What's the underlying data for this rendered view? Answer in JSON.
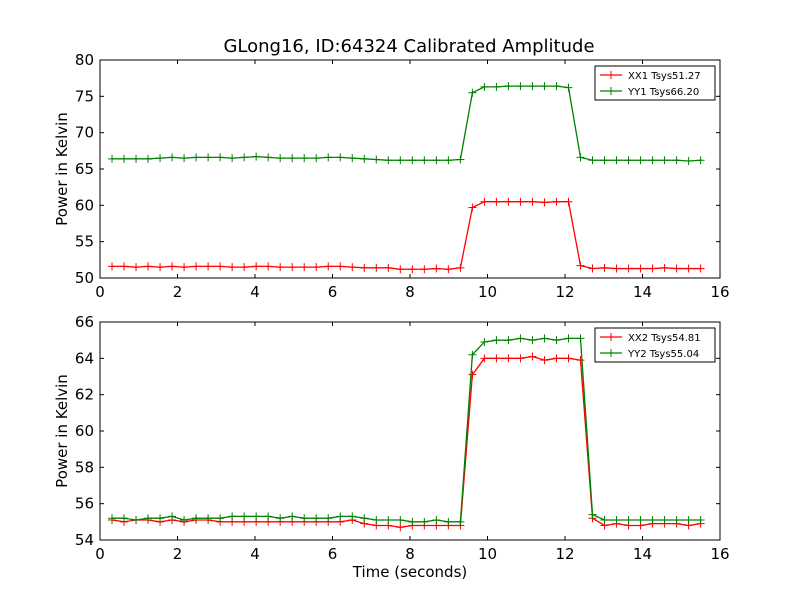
{
  "figure": {
    "title": "GLong16, ID:64324 Calibrated Amplitude",
    "xlabel": "Time (seconds)"
  },
  "chart_data": [
    {
      "type": "line",
      "title": "GLong16, ID:64324 Calibrated Amplitude",
      "xlabel": "",
      "ylabel": "Power in Kelvin",
      "xlim": [
        0,
        16
      ],
      "ylim": [
        50,
        80
      ],
      "xticks": [
        0,
        2,
        4,
        6,
        8,
        10,
        12,
        14,
        16
      ],
      "yticks": [
        50,
        55,
        60,
        65,
        70,
        75,
        80
      ],
      "grid": false,
      "legend": "top-right",
      "x": [
        0.31,
        0.62,
        0.93,
        1.24,
        1.55,
        1.86,
        2.17,
        2.48,
        2.79,
        3.1,
        3.41,
        3.72,
        4.03,
        4.34,
        4.65,
        4.96,
        5.27,
        5.58,
        5.89,
        6.2,
        6.51,
        6.82,
        7.13,
        7.44,
        7.75,
        8.06,
        8.37,
        8.68,
        8.99,
        9.3,
        9.61,
        9.92,
        10.23,
        10.54,
        10.85,
        11.16,
        11.47,
        11.78,
        12.09,
        12.4,
        12.71,
        13.02,
        13.33,
        13.64,
        13.95,
        14.26,
        14.57,
        14.88,
        15.19,
        15.5
      ],
      "series": [
        {
          "name": "XX1 Tsys51.27",
          "color": "#ff0000",
          "values": [
            51.6,
            51.6,
            51.5,
            51.6,
            51.5,
            51.6,
            51.5,
            51.6,
            51.6,
            51.6,
            51.5,
            51.5,
            51.6,
            51.6,
            51.5,
            51.5,
            51.5,
            51.5,
            51.6,
            51.6,
            51.5,
            51.4,
            51.4,
            51.4,
            51.2,
            51.2,
            51.2,
            51.3,
            51.2,
            51.4,
            59.7,
            60.5,
            60.5,
            60.5,
            60.5,
            60.5,
            60.4,
            60.5,
            60.5,
            51.7,
            51.3,
            51.4,
            51.3,
            51.3,
            51.3,
            51.3,
            51.4,
            51.3,
            51.3,
            51.3
          ]
        },
        {
          "name": "YY1 Tsys66.20",
          "color": "#008000",
          "values": [
            66.4,
            66.4,
            66.4,
            66.4,
            66.5,
            66.6,
            66.5,
            66.6,
            66.6,
            66.6,
            66.5,
            66.6,
            66.7,
            66.6,
            66.5,
            66.5,
            66.5,
            66.5,
            66.6,
            66.6,
            66.5,
            66.4,
            66.3,
            66.2,
            66.2,
            66.2,
            66.2,
            66.2,
            66.2,
            66.3,
            75.5,
            76.3,
            76.3,
            76.4,
            76.4,
            76.4,
            76.4,
            76.4,
            76.2,
            66.6,
            66.2,
            66.2,
            66.2,
            66.2,
            66.2,
            66.2,
            66.2,
            66.2,
            66.1,
            66.2
          ]
        }
      ]
    },
    {
      "type": "line",
      "title": "",
      "xlabel": "Time (seconds)",
      "ylabel": "Power in Kelvin",
      "xlim": [
        0,
        16
      ],
      "ylim": [
        54,
        66
      ],
      "xticks": [
        0,
        2,
        4,
        6,
        8,
        10,
        12,
        14,
        16
      ],
      "yticks": [
        54,
        56,
        58,
        60,
        62,
        64,
        66
      ],
      "grid": false,
      "legend": "top-right",
      "x": [
        0.31,
        0.62,
        0.93,
        1.24,
        1.55,
        1.86,
        2.17,
        2.48,
        2.79,
        3.1,
        3.41,
        3.72,
        4.03,
        4.34,
        4.65,
        4.96,
        5.27,
        5.58,
        5.89,
        6.2,
        6.51,
        6.82,
        7.13,
        7.44,
        7.75,
        8.06,
        8.37,
        8.68,
        8.99,
        9.3,
        9.61,
        9.92,
        10.23,
        10.54,
        10.85,
        11.16,
        11.47,
        11.78,
        12.09,
        12.4,
        12.71,
        13.02,
        13.33,
        13.64,
        13.95,
        14.26,
        14.57,
        14.88,
        15.19,
        15.5
      ],
      "series": [
        {
          "name": "XX2 Tsys54.81",
          "color": "#ff0000",
          "values": [
            55.1,
            55.0,
            55.1,
            55.1,
            55.0,
            55.1,
            55.0,
            55.1,
            55.1,
            55.0,
            55.0,
            55.0,
            55.0,
            55.0,
            55.0,
            55.0,
            55.0,
            55.0,
            55.0,
            55.0,
            55.1,
            54.9,
            54.8,
            54.8,
            54.7,
            54.8,
            54.8,
            54.8,
            54.8,
            54.8,
            63.1,
            64.0,
            64.0,
            64.0,
            64.0,
            64.1,
            63.9,
            64.0,
            64.0,
            63.9,
            55.2,
            54.8,
            54.9,
            54.8,
            54.8,
            54.9,
            54.9,
            54.9,
            54.8,
            54.9
          ]
        },
        {
          "name": "YY2 Tsys55.04",
          "color": "#008000",
          "values": [
            55.2,
            55.2,
            55.1,
            55.2,
            55.2,
            55.3,
            55.1,
            55.2,
            55.2,
            55.2,
            55.3,
            55.3,
            55.3,
            55.3,
            55.2,
            55.3,
            55.2,
            55.2,
            55.2,
            55.3,
            55.3,
            55.2,
            55.1,
            55.1,
            55.1,
            55.0,
            55.0,
            55.1,
            55.0,
            55.0,
            64.2,
            64.9,
            65.0,
            65.0,
            65.1,
            65.0,
            65.1,
            65.0,
            65.1,
            65.1,
            55.4,
            55.1,
            55.1,
            55.1,
            55.1,
            55.1,
            55.1,
            55.1,
            55.1,
            55.1
          ]
        }
      ]
    }
  ]
}
